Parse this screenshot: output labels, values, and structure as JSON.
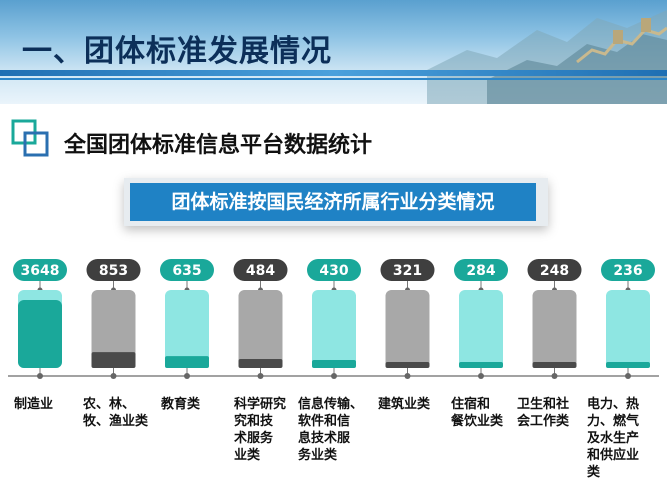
{
  "header": {
    "title": "一、团体标准发展情况"
  },
  "section": {
    "subtitle": "全国团体标准信息平台数据统计"
  },
  "banner": {
    "text": "团体标准按国民经济所属行业分类情况"
  },
  "colors": {
    "teal_fill": "#1aa89a",
    "teal_light": "#8ee6e2",
    "teal_pale": "#b9efec",
    "gray_dark": "#4a4a4a",
    "gray_light": "#a8a8a8",
    "banner": "#1f82c5"
  },
  "chart_data": {
    "type": "bar",
    "title": "团体标准按国民经济所属行业分类情况",
    "categories": [
      "制造业",
      "农、林、牧、渔业类",
      "教育类",
      "科学研究和技术服务业类",
      "信息传输、软件和信息技术服务业类",
      "建筑业类",
      "住宿和餐饮业类",
      "卫生和社会工作类",
      "电力、热力、燃气及水生产和供应业类"
    ],
    "category_lines": [
      [
        "制造业"
      ],
      [
        "农、林、",
        "牧、渔业类"
      ],
      [
        "教育类"
      ],
      [
        "科学研究",
        "究和技",
        "术服务",
        "业类"
      ],
      [
        "信息传输、",
        "软件和信",
        "息技术服",
        "务业类"
      ],
      [
        "建筑业类"
      ],
      [
        "住宿和",
        "餐饮业类"
      ],
      [
        "卫生和社",
        "会工作类"
      ],
      [
        "电力、热",
        "力、燃气",
        "及水生产",
        "和供应业",
        "类"
      ]
    ],
    "values": [
      3648,
      853,
      635,
      484,
      430,
      321,
      284,
      248,
      236
    ],
    "value_labels": [
      "3648",
      "853",
      "635",
      "484",
      "430",
      "321",
      "284",
      "248",
      "236"
    ],
    "ylim": [
      0,
      3648
    ],
    "grid": false,
    "legend": "none"
  }
}
